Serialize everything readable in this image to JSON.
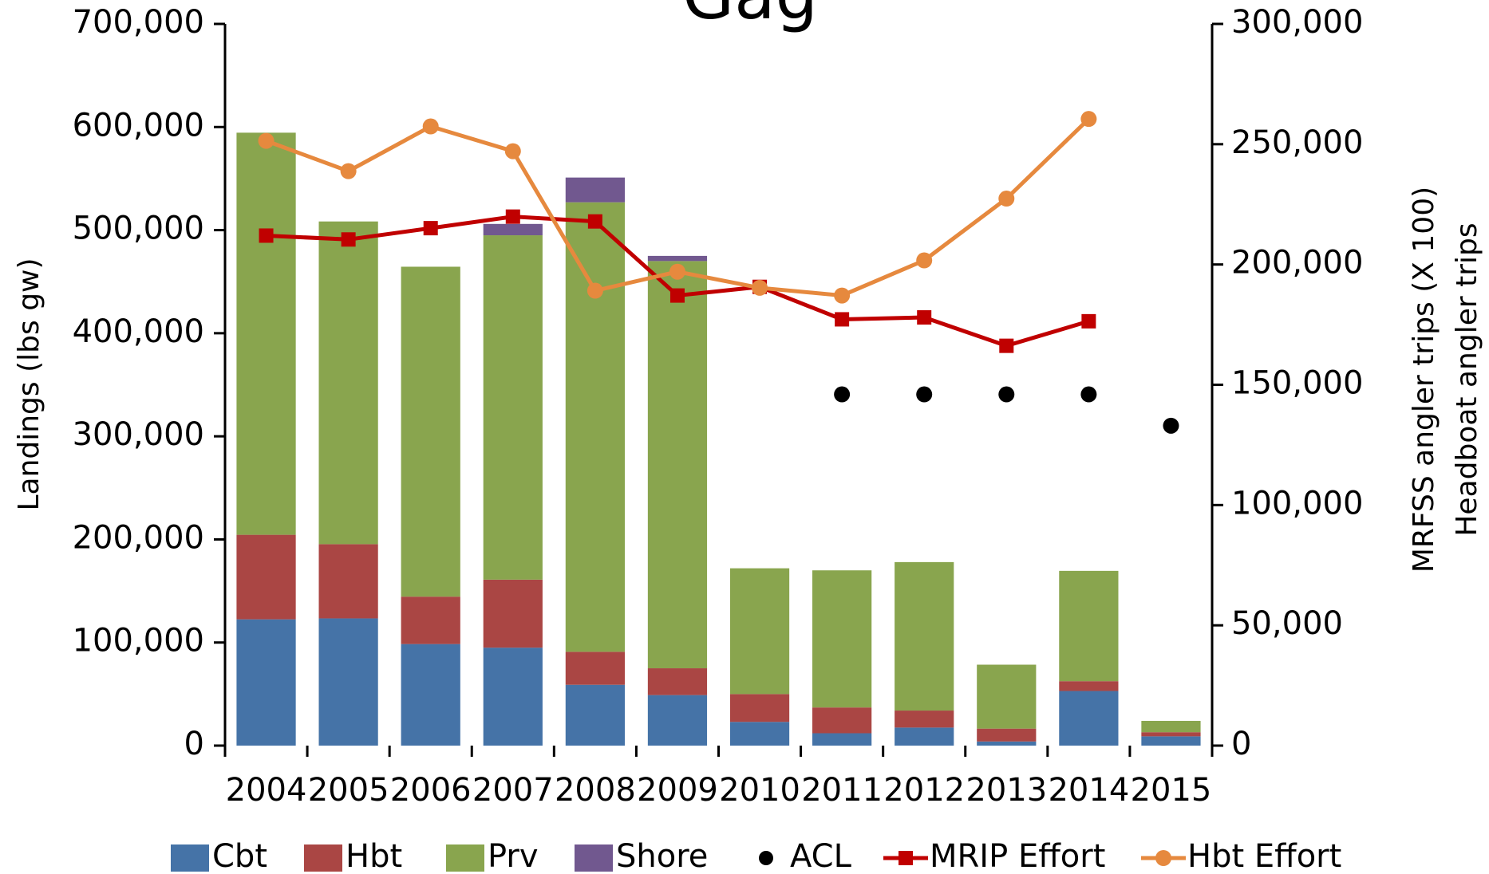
{
  "chart_data": {
    "type": "bar",
    "stacked": true,
    "title": "Gag",
    "ylabel": "Landings (lbs gw)",
    "y2label": [
      "MRFSS angler trips (X 100)",
      "Headboat angler trips"
    ],
    "categories": [
      "2004",
      "2005",
      "2006",
      "2007",
      "2008",
      "2009",
      "2010",
      "2011",
      "2012",
      "2013",
      "2014",
      "2015"
    ],
    "series": [
      {
        "name": "Cbt",
        "type": "bar",
        "color": "#4573a7",
        "values": [
          122500,
          123400,
          98500,
          95000,
          59000,
          49000,
          23000,
          12000,
          17500,
          4000,
          53000,
          9000
        ]
      },
      {
        "name": "Hbt",
        "type": "bar",
        "color": "#aa4644",
        "values": [
          82000,
          72000,
          46000,
          66000,
          32000,
          26000,
          27000,
          25000,
          16500,
          12500,
          9500,
          4000
        ]
      },
      {
        "name": "Prv",
        "type": "bar",
        "color": "#89a54e",
        "values": [
          390000,
          313000,
          320000,
          334000,
          436000,
          395000,
          122000,
          133000,
          144000,
          62000,
          107000,
          11000
        ]
      },
      {
        "name": "Shore",
        "type": "bar",
        "color": "#71588f",
        "values": [
          0,
          0,
          0,
          11000,
          24000,
          5000,
          0,
          0,
          0,
          0,
          0,
          0
        ]
      },
      {
        "name": "ACL",
        "type": "scatter",
        "marker": "circle",
        "color": "#000000",
        "values": [
          null,
          null,
          null,
          null,
          null,
          null,
          null,
          340700,
          340700,
          340700,
          340700,
          310300
        ]
      },
      {
        "name": "MRIP Effort",
        "type": "line",
        "axis": "y2",
        "marker": "square",
        "color": "#c00000",
        "values": [
          212000,
          210400,
          215100,
          219900,
          217900,
          187100,
          190700,
          177200,
          178000,
          166200,
          176400,
          null
        ]
      },
      {
        "name": "Hbt Effort",
        "type": "line",
        "axis": "y2",
        "marker": "circle",
        "color": "#e6893e",
        "values": [
          251400,
          238800,
          257400,
          247100,
          189100,
          197000,
          190300,
          187100,
          201700,
          227400,
          260500,
          null
        ]
      }
    ],
    "ylim": [
      0,
      700000
    ],
    "yticks": [
      0,
      {
        "value": 100000,
        "label": "100,000"
      },
      {
        "value": 200000,
        "label": "200,000"
      },
      {
        "value": 300000,
        "label": "300,000"
      },
      {
        "value": 400000,
        "label": "400,000"
      },
      {
        "value": 500000,
        "label": "500,000"
      },
      {
        "value": 600000,
        "label": "600,000"
      },
      {
        "value": 700000,
        "label": "700,000"
      }
    ],
    "y2lim": [
      0,
      300000
    ],
    "y2ticks": [
      0,
      {
        "value": 50000,
        "label": "50,000"
      },
      {
        "value": 100000,
        "label": "100,000"
      },
      {
        "value": 150000,
        "label": "150,000"
      },
      {
        "value": 200000,
        "label": "200,000"
      },
      {
        "value": 250000,
        "label": "250,000"
      },
      {
        "value": 300000,
        "label": "300,000"
      }
    ],
    "legend": "bottom"
  }
}
